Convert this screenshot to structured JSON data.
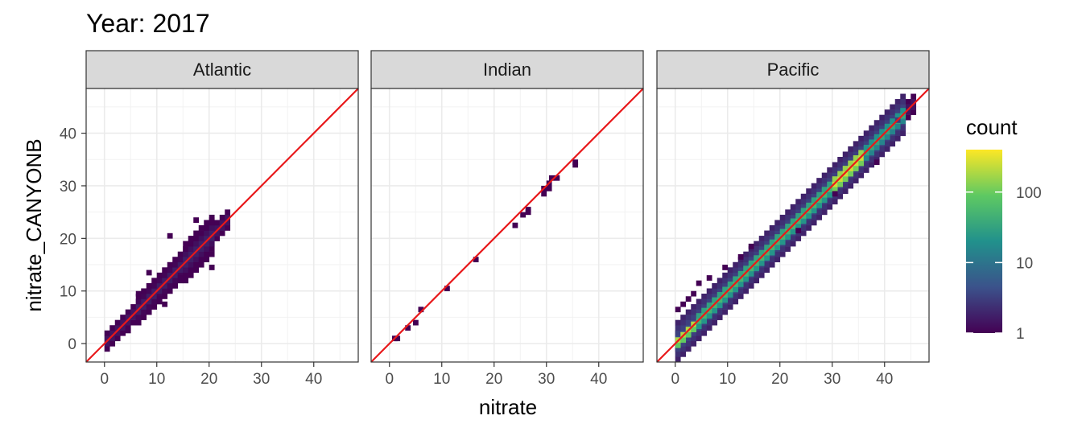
{
  "chart_data": {
    "type": "heatmap",
    "title": "Year: 2017",
    "xlabel": "nitrate",
    "ylabel": "nitrate_CANYONB",
    "xlim": [
      -3.5,
      48.5
    ],
    "ylim": [
      -3.5,
      48.5
    ],
    "xticks": [
      0,
      10,
      20,
      30,
      40
    ],
    "yticks": [
      0,
      10,
      20,
      30,
      40
    ],
    "grid": true,
    "reference_line": {
      "type": "identity",
      "color": "#e8181a"
    },
    "legend": {
      "title": "count",
      "scale": "log10",
      "breaks": [
        1,
        10,
        100
      ],
      "break_labels": [
        "1",
        "10",
        "100"
      ],
      "range": [
        1,
        400
      ],
      "palette": [
        "#440154",
        "#3b528b",
        "#21918c",
        "#5ec962",
        "#fde725"
      ],
      "placement": "right"
    },
    "facets": [
      {
        "label": "Atlantic",
        "segments": [
          {
            "x0": 0,
            "x1": 24,
            "w": 1.5,
            "n": 2
          },
          {
            "x0": 6,
            "x1": 18,
            "w": 2.5,
            "n": 2
          },
          {
            "x0": 15,
            "x1": 21,
            "w": 3.5,
            "n": 2
          }
        ],
        "points": [
          [
            12,
            20,
            1
          ],
          [
            17,
            23,
            1
          ],
          [
            20,
            23,
            1
          ],
          [
            6,
            9,
            1
          ],
          [
            4,
            2,
            1
          ],
          [
            8,
            13,
            1
          ],
          [
            14,
            12,
            1
          ],
          [
            10,
            8,
            1
          ],
          [
            11,
            7,
            1
          ],
          [
            20,
            14,
            1
          ]
        ]
      },
      {
        "label": "Indian",
        "segments": [],
        "points": [
          [
            0.5,
            0.5,
            1
          ],
          [
            1,
            0.5,
            1
          ],
          [
            3,
            2.5,
            1
          ],
          [
            4.5,
            3.5,
            1
          ],
          [
            5.5,
            6,
            1
          ],
          [
            10.5,
            10,
            1
          ],
          [
            16,
            15.5,
            1
          ],
          [
            23.5,
            22,
            1
          ],
          [
            25,
            24,
            1
          ],
          [
            26,
            24.5,
            1
          ],
          [
            26,
            25,
            1
          ],
          [
            29,
            28,
            1
          ],
          [
            29,
            29,
            1
          ],
          [
            30,
            30,
            1
          ],
          [
            30.5,
            31,
            1
          ],
          [
            31.5,
            31,
            1
          ],
          [
            30,
            29,
            1
          ],
          [
            35,
            33.5,
            1
          ],
          [
            35,
            34,
            1
          ]
        ]
      },
      {
        "label": "Pacific",
        "segments": [
          {
            "x0": 0,
            "x1": 46,
            "w": 1.5,
            "n": 2
          },
          {
            "x0": 0,
            "x1": 44,
            "w": 3.5,
            "n": 5
          },
          {
            "x0": 0,
            "x1": 4,
            "w": 0.8,
            "n": 250
          },
          {
            "x0": 4,
            "x1": 30,
            "w": 1.2,
            "n": 60
          },
          {
            "x0": 30,
            "x1": 36,
            "w": 1.2,
            "n": 300
          },
          {
            "x0": 36,
            "x1": 44,
            "w": 1.2,
            "n": 40
          }
        ],
        "points": [
          [
            0,
            6,
            1
          ],
          [
            1,
            7,
            1
          ],
          [
            2,
            8,
            1
          ],
          [
            3,
            9,
            1
          ],
          [
            4,
            11,
            1
          ],
          [
            6,
            12,
            1
          ],
          [
            9,
            14,
            1
          ],
          [
            12,
            16,
            1
          ],
          [
            14,
            18,
            1
          ],
          [
            23,
            21,
            1
          ],
          [
            30,
            28,
            1
          ],
          [
            38,
            34,
            1
          ],
          [
            42,
            42,
            3
          ]
        ]
      }
    ]
  }
}
